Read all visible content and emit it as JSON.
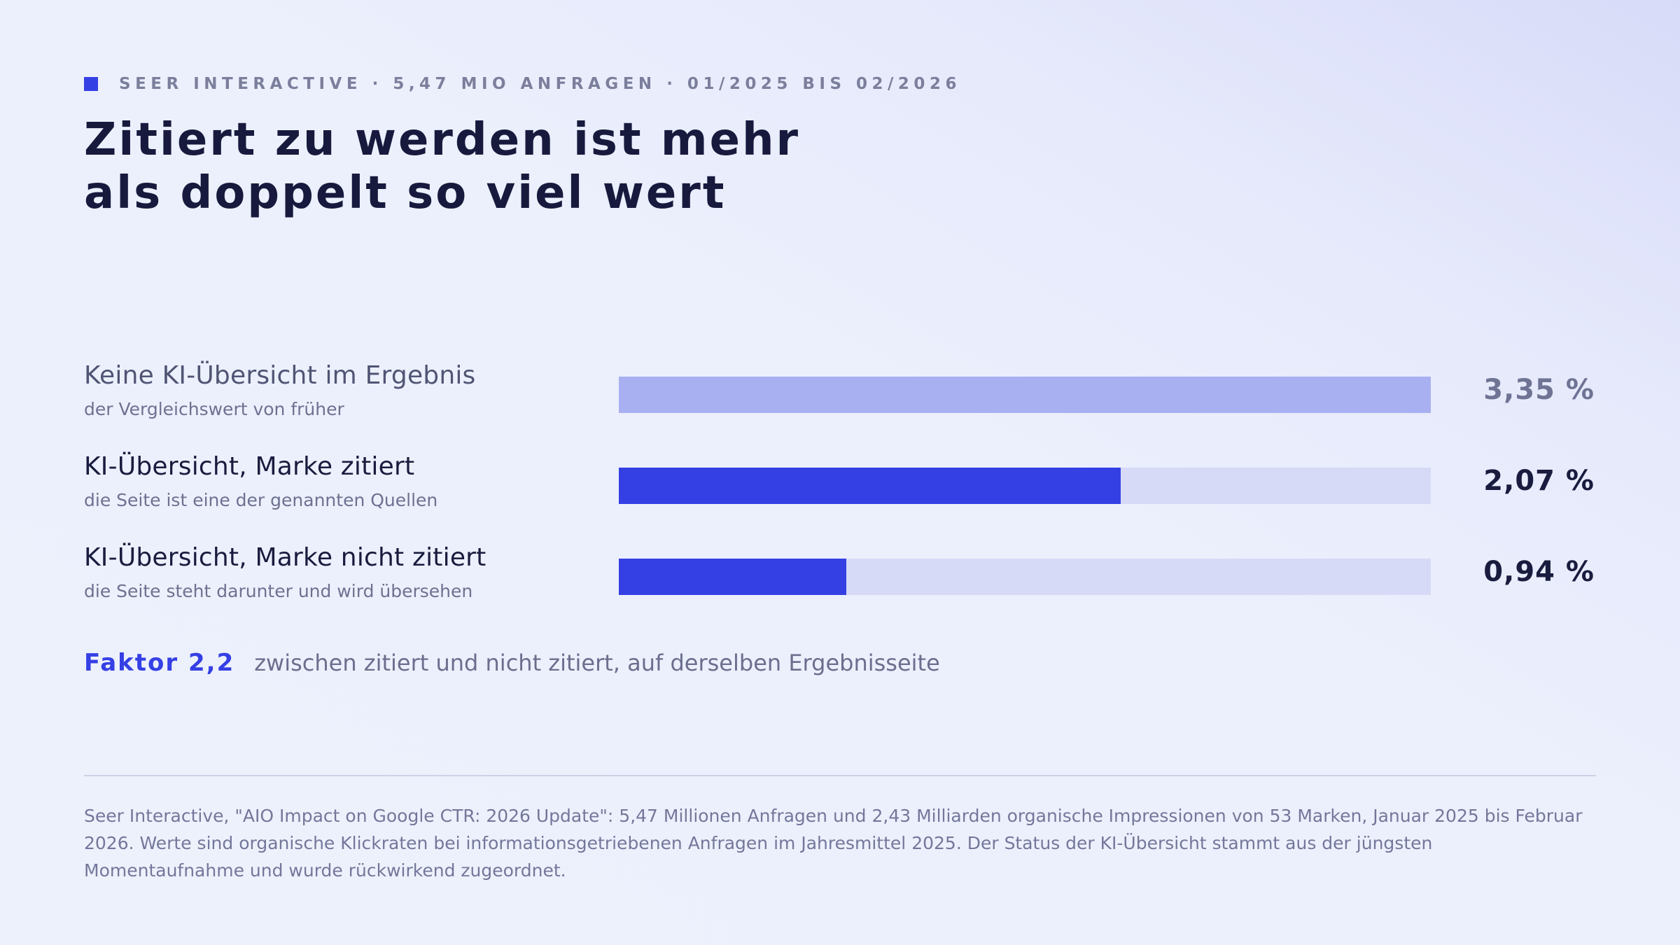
{
  "header": {
    "eyebrow": "SEER INTERACTIVE · 5,47 MIO ANFRAGEN · 01/2025 BIS 02/2026",
    "title_line1": "Zitiert zu werden ist mehr",
    "title_line2": "als doppelt so viel wert"
  },
  "rows": [
    {
      "label": "Keine KI-Übersicht im Ergebnis",
      "sub": "der Vergleichswert von früher",
      "value_label": "3,35 %",
      "value": 3.35,
      "bar_color": "#a9b0f2",
      "track_color": "#d6daf7",
      "label_color": "#505474",
      "value_color": "#6f7394"
    },
    {
      "label": "KI-Übersicht, Marke zitiert",
      "sub": "die Seite ist eine der genannten Quellen",
      "value_label": "2,07 %",
      "value": 2.07,
      "bar_color": "#3540e4",
      "track_color": "#d6daf7",
      "label_color": "#191c3e",
      "value_color": "#191c3e"
    },
    {
      "label": "KI-Übersicht, Marke nicht zitiert",
      "sub": "die Seite steht darunter und wird übersehen",
      "value_label": "0,94 %",
      "value": 0.94,
      "bar_color": "#3540e4",
      "track_color": "#d6daf7",
      "label_color": "#191c3e",
      "value_color": "#191c3e"
    }
  ],
  "factor": {
    "strong": "Faktor 2,2",
    "text": "zwischen zitiert und nicht zitiert, auf derselben Ergebnisseite"
  },
  "source": "Seer Interactive, \"AIO Impact on Google CTR: 2026 Update\": 5,47 Millionen Anfragen und 2,43 Milliarden organische Impressionen von 53 Marken, Januar 2025 bis Februar 2026. Werte sind organische Klickraten bei informationsgetriebenen Anfragen im Jahresmittel 2025. Der Status der KI-Übersicht stammt aus der jüngsten Momentaufnahme und wurde rückwirkend zugeordnet.",
  "chart_data": {
    "type": "bar",
    "orientation": "horizontal",
    "categories": [
      "Keine KI-Übersicht im Ergebnis",
      "KI-Übersicht, Marke zitiert",
      "KI-Übersicht, Marke nicht zitiert"
    ],
    "values": [
      3.35,
      2.07,
      0.94
    ],
    "value_labels": [
      "3,35 %",
      "2,07 %",
      "0,94 %"
    ],
    "xlim": [
      0,
      3.35
    ],
    "grid": false
  },
  "colors": {
    "accent": "#3540e4",
    "muted_bar": "#a9b0f2",
    "track": "#d6daf7",
    "text_dark": "#171a3d",
    "text_muted": "#6e7190"
  }
}
